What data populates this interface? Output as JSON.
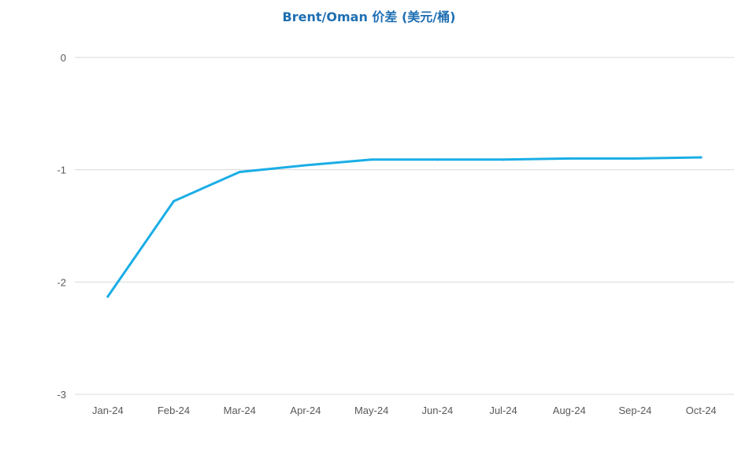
{
  "chart_data": {
    "type": "line",
    "title": "Brent/Oman 价差 (美元/桶)",
    "xlabel": "",
    "ylabel": "",
    "categories": [
      "Jan-24",
      "Feb-24",
      "Mar-24",
      "Apr-24",
      "May-24",
      "Jun-24",
      "Jul-24",
      "Aug-24",
      "Sep-24",
      "Oct-24"
    ],
    "series": [
      {
        "values": [
          -2.13,
          -1.28,
          -1.02,
          -0.96,
          -0.91,
          -0.91,
          -0.91,
          -0.9,
          -0.9,
          -0.89
        ],
        "color": "#1aaee6"
      }
    ],
    "ylim": [
      -3,
      0
    ],
    "yticks": [
      "0",
      "-1",
      "-2",
      "-3"
    ],
    "grid": true,
    "legend": "none",
    "colors": {
      "title": "#1f6fb2",
      "line": "#1aaee6",
      "grid": "#d9d9d9",
      "tick": "#595959"
    }
  }
}
